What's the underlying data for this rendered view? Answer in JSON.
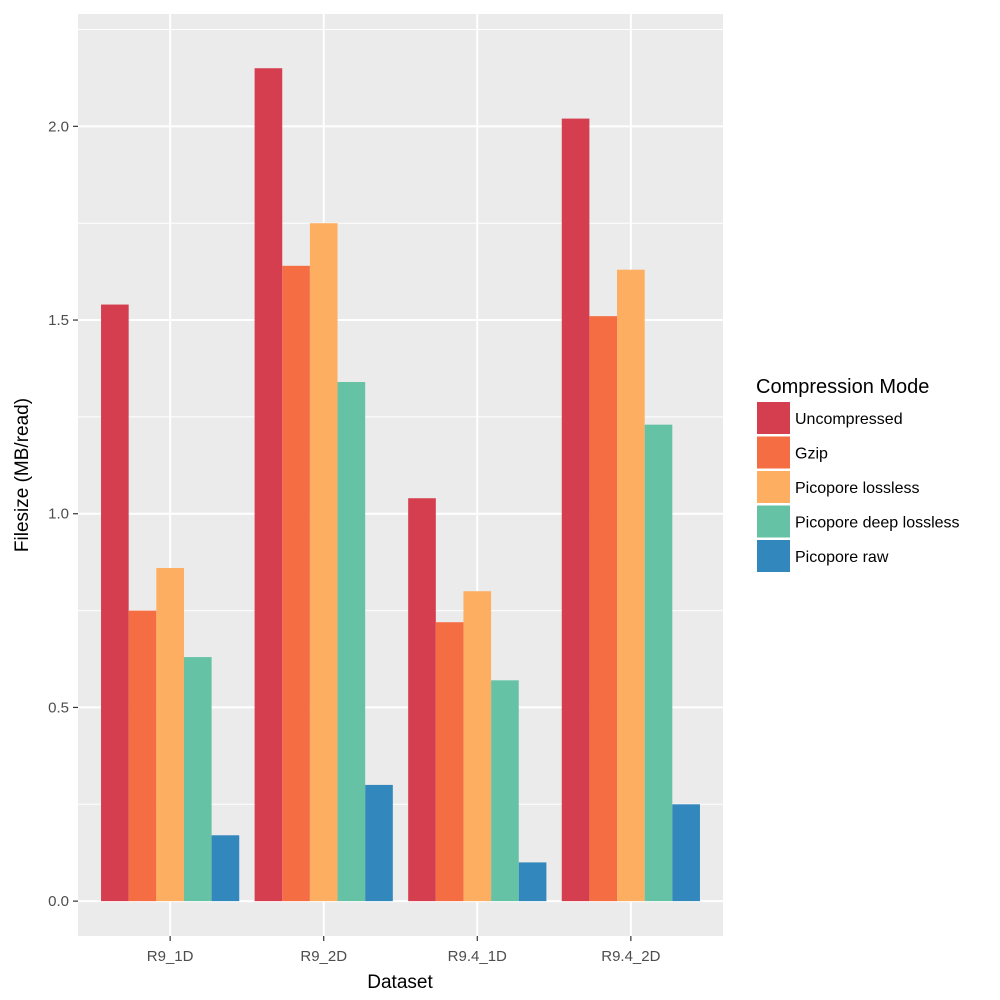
{
  "chart_data": {
    "type": "bar",
    "title": "",
    "xlabel": "Dataset",
    "ylabel": "Filesize (MB/read)",
    "categories": [
      "R9_1D",
      "R9_2D",
      "R9.4_1D",
      "R9.4_2D"
    ],
    "ylim": [
      -0.09,
      2.29
    ],
    "yticks": [
      0.0,
      0.5,
      1.0,
      1.5,
      2.0
    ],
    "ytick_labels": [
      "0.0",
      "0.5",
      "1.0",
      "1.5",
      "2.0"
    ],
    "grid": true,
    "legend_position": "right",
    "legend_title": "Compression Mode",
    "series": [
      {
        "name": "Uncompressed",
        "color": "#d53e4f",
        "values": [
          1.54,
          2.15,
          1.04,
          2.02
        ]
      },
      {
        "name": "Gzip",
        "color": "#f46d43",
        "values": [
          0.75,
          1.64,
          0.72,
          1.51
        ]
      },
      {
        "name": "Picopore lossless",
        "color": "#fdae61",
        "values": [
          0.86,
          1.75,
          0.8,
          1.63
        ]
      },
      {
        "name": "Picopore deep lossless",
        "color": "#66c2a5",
        "values": [
          0.63,
          1.34,
          0.57,
          1.23
        ]
      },
      {
        "name": "Picopore raw",
        "color": "#3288bd",
        "values": [
          0.17,
          0.3,
          0.1,
          0.25
        ]
      }
    ],
    "panel_background": "#ebebeb",
    "gridline_color": "#ffffff"
  }
}
